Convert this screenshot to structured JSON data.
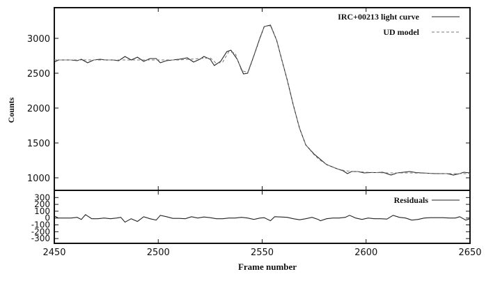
{
  "chart_data": [
    {
      "type": "line",
      "ylabel": "Counts",
      "xlim": [
        2450,
        2650
      ],
      "ylim": [
        820,
        3440
      ],
      "yticks": [
        1000,
        1500,
        2000,
        2500,
        3000
      ],
      "grid": false,
      "legend_placement": "top-right",
      "series": [
        {
          "name": "IRC+00213 light curve",
          "style": "solid",
          "x": [
            2450,
            2452,
            2455,
            2458,
            2461,
            2463,
            2466,
            2469,
            2472,
            2475,
            2478,
            2481,
            2484,
            2487,
            2490,
            2493,
            2496,
            2499,
            2501,
            2504,
            2507,
            2510,
            2514,
            2517,
            2520,
            2522,
            2525,
            2527,
            2530,
            2533,
            2535,
            2538,
            2541,
            2543,
            2546,
            2549,
            2551,
            2554,
            2557,
            2559,
            2562,
            2565,
            2568,
            2571,
            2575,
            2577,
            2581,
            2586,
            2589,
            2591,
            2593,
            2596,
            2599,
            2602,
            2605,
            2608,
            2612,
            2615,
            2618,
            2621,
            2624,
            2627,
            2630,
            2633,
            2636,
            2639,
            2642,
            2645,
            2647,
            2650
          ],
          "y": [
            2660,
            2690,
            2690,
            2690,
            2680,
            2700,
            2650,
            2690,
            2700,
            2690,
            2690,
            2680,
            2740,
            2690,
            2730,
            2670,
            2710,
            2710,
            2650,
            2680,
            2690,
            2700,
            2720,
            2660,
            2700,
            2740,
            2700,
            2610,
            2670,
            2810,
            2830,
            2700,
            2490,
            2500,
            2750,
            3010,
            3170,
            3190,
            2970,
            2740,
            2410,
            2040,
            1710,
            1470,
            1340,
            1290,
            1190,
            1130,
            1100,
            1060,
            1090,
            1090,
            1070,
            1075,
            1075,
            1080,
            1040,
            1070,
            1080,
            1090,
            1075,
            1070,
            1065,
            1060,
            1060,
            1060,
            1040,
            1060,
            1080,
            1070
          ]
        },
        {
          "name": "UD model",
          "style": "dashed",
          "x": [
            2450,
            2460,
            2470,
            2480,
            2490,
            2500,
            2510,
            2520,
            2525,
            2528,
            2531,
            2534,
            2537,
            2540,
            2543,
            2546,
            2549,
            2551,
            2554,
            2557,
            2559,
            2562,
            2565,
            2568,
            2571,
            2575,
            2578,
            2581,
            2586,
            2590,
            2600,
            2610,
            2620,
            2630,
            2640,
            2650
          ],
          "y": [
            2690,
            2690,
            2690,
            2690,
            2690,
            2690,
            2690,
            2710,
            2720,
            2640,
            2660,
            2810,
            2790,
            2540,
            2510,
            2760,
            3020,
            3170,
            3180,
            2970,
            2740,
            2410,
            2040,
            1710,
            1470,
            1330,
            1250,
            1190,
            1130,
            1100,
            1080,
            1070,
            1070,
            1065,
            1060,
            1060
          ]
        }
      ]
    },
    {
      "type": "line",
      "xlabel": "Frame number",
      "xlim": [
        2450,
        2650
      ],
      "ylim": [
        -370,
        405
      ],
      "xticks": [
        2450,
        2500,
        2550,
        2600,
        2650
      ],
      "yticks": [
        300,
        200,
        100,
        0,
        -100,
        -200,
        -300
      ],
      "grid": false,
      "legend_placement": "top-right",
      "series": [
        {
          "name": "Residuals",
          "style": "solid",
          "x": [
            2450,
            2452,
            2455,
            2458,
            2461,
            2463,
            2465,
            2468,
            2471,
            2474,
            2477,
            2480,
            2482,
            2484,
            2487,
            2490,
            2493,
            2496,
            2499,
            2501,
            2504,
            2507,
            2510,
            2513,
            2516,
            2519,
            2522,
            2525,
            2528,
            2531,
            2534,
            2537,
            2540,
            2543,
            2546,
            2549,
            2551,
            2554,
            2556,
            2559,
            2562,
            2565,
            2568,
            2571,
            2574,
            2577,
            2578,
            2581,
            2584,
            2587,
            2590,
            2592,
            2595,
            2598,
            2601,
            2604,
            2607,
            2610,
            2613,
            2616,
            2619,
            2622,
            2625,
            2628,
            2631,
            2634,
            2637,
            2640,
            2643,
            2645,
            2648,
            2650
          ],
          "y": [
            30,
            0,
            0,
            0,
            10,
            -20,
            50,
            -10,
            -10,
            0,
            -10,
            0,
            10,
            -60,
            -10,
            -50,
            20,
            -10,
            -30,
            40,
            20,
            -5,
            -5,
            -10,
            20,
            0,
            15,
            5,
            -10,
            -10,
            0,
            0,
            10,
            0,
            -20,
            0,
            5,
            -40,
            20,
            15,
            10,
            -10,
            -25,
            -10,
            10,
            -20,
            -40,
            -10,
            0,
            0,
            10,
            40,
            0,
            -20,
            0,
            -10,
            -10,
            -15,
            40,
            10,
            0,
            -30,
            -20,
            0,
            5,
            5,
            5,
            0,
            0,
            20,
            -30,
            -10
          ]
        }
      ]
    }
  ]
}
